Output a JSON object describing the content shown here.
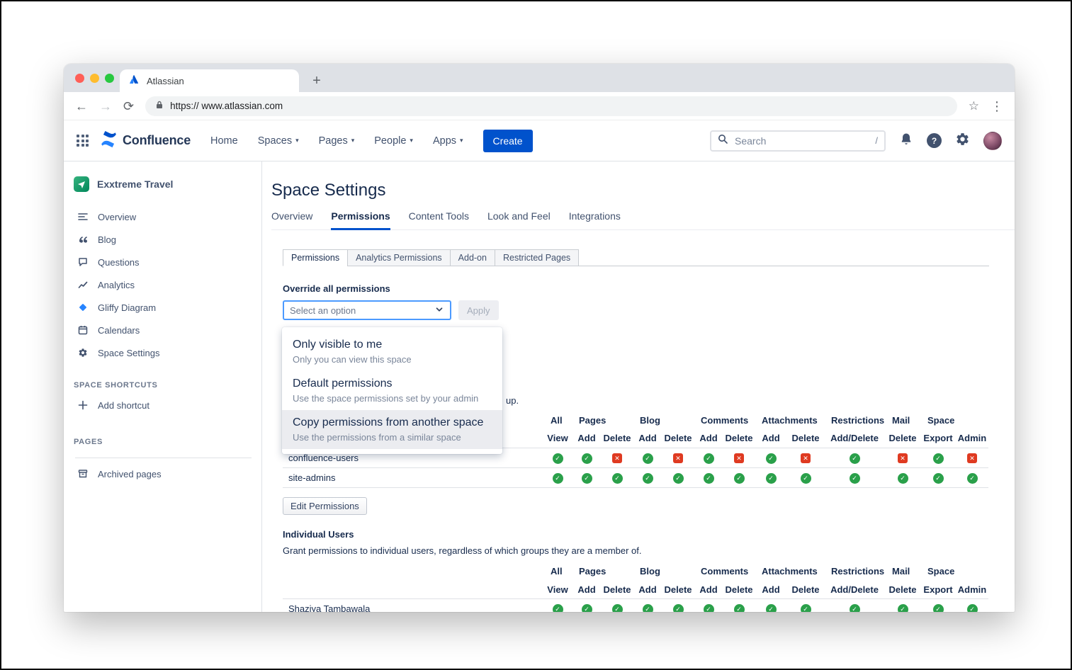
{
  "browser": {
    "tab_title": "Atlassian",
    "new_tab_label": "+",
    "url": "https:// www.atlassian.com"
  },
  "topnav": {
    "product": "Confluence",
    "items": [
      {
        "label": "Home",
        "dropdown": false
      },
      {
        "label": "Spaces",
        "dropdown": true
      },
      {
        "label": "Pages",
        "dropdown": true
      },
      {
        "label": "People",
        "dropdown": true
      },
      {
        "label": "Apps",
        "dropdown": true
      }
    ],
    "create_label": "Create",
    "search_placeholder": "Search",
    "search_shortcut": "/"
  },
  "sidebar": {
    "space_name": "Exxtreme Travel",
    "items": [
      {
        "label": "Overview",
        "icon": "overview"
      },
      {
        "label": "Blog",
        "icon": "blog"
      },
      {
        "label": "Questions",
        "icon": "questions"
      },
      {
        "label": "Analytics",
        "icon": "analytics"
      },
      {
        "label": "Gliffy Diagram",
        "icon": "gliffy"
      },
      {
        "label": "Calendars",
        "icon": "calendar"
      },
      {
        "label": "Space Settings",
        "icon": "gear"
      }
    ],
    "shortcuts_heading": "SPACE SHORTCUTS",
    "add_shortcut_label": "Add shortcut",
    "pages_heading": "PAGES",
    "archived_pages_label": "Archived pages"
  },
  "main": {
    "title": "Space Settings",
    "tabs": [
      "Overview",
      "Permissions",
      "Content Tools",
      "Look and Feel",
      "Integrations"
    ],
    "active_tab": "Permissions",
    "subtabs": [
      "Permissions",
      "Analytics Permissions",
      "Add-on",
      "Restricted Pages"
    ],
    "active_subtab": "Permissions",
    "override_label": "Override all permissions",
    "select_value": "Select an option",
    "apply_label": "Apply",
    "dropdown_options": [
      {
        "title": "Only visible to me",
        "description": "Only you can view this space",
        "highlighted": false
      },
      {
        "title": "Default permissions",
        "description": "Use the space permissions set by your admin",
        "highlighted": false
      },
      {
        "title": "Copy permissions from another space",
        "description": "Use the permissions from a similar space",
        "highlighted": true
      }
    ],
    "occluded_text_fragment": "up.",
    "edit_permissions_label": "Edit Permissions",
    "individual_users_heading": "Individual Users",
    "individual_users_description": "Grant permissions to individual users, regardless of which groups they are a member of."
  },
  "permission_columns": {
    "groups": [
      {
        "label": "All",
        "span": 1
      },
      {
        "label": "Pages",
        "span": 2
      },
      {
        "label": "Blog",
        "span": 2
      },
      {
        "label": "Comments",
        "span": 2
      },
      {
        "label": "Attachments",
        "span": 2
      },
      {
        "label": "Restrictions",
        "span": 1
      },
      {
        "label": "Mail",
        "span": 1
      },
      {
        "label": "Space",
        "span": 2
      }
    ],
    "cols": [
      "View",
      "Add",
      "Delete",
      "Add",
      "Delete",
      "Add",
      "Delete",
      "Add",
      "Delete",
      "Add/Delete",
      "Delete",
      "Export",
      "Admin"
    ]
  },
  "groups_rows": [
    {
      "name": "confluence-users",
      "perms": [
        "y",
        "y",
        "n",
        "y",
        "n",
        "y",
        "n",
        "y",
        "n",
        "y",
        "n",
        "y",
        "n"
      ]
    },
    {
      "name": "site-admins",
      "perms": [
        "y",
        "y",
        "y",
        "y",
        "y",
        "y",
        "y",
        "y",
        "y",
        "y",
        "y",
        "y",
        "y"
      ]
    }
  ],
  "users_rows": [
    {
      "name": "Shaziya Tambawala",
      "perms": [
        "y",
        "y",
        "y",
        "y",
        "y",
        "y",
        "y",
        "y",
        "y",
        "y",
        "y",
        "y",
        "y"
      ]
    }
  ],
  "colors": {
    "accent": "#0052CC",
    "allow": "#2AA04A",
    "deny": "#DF3A21",
    "select_focus_border": "#4C9AFF"
  }
}
